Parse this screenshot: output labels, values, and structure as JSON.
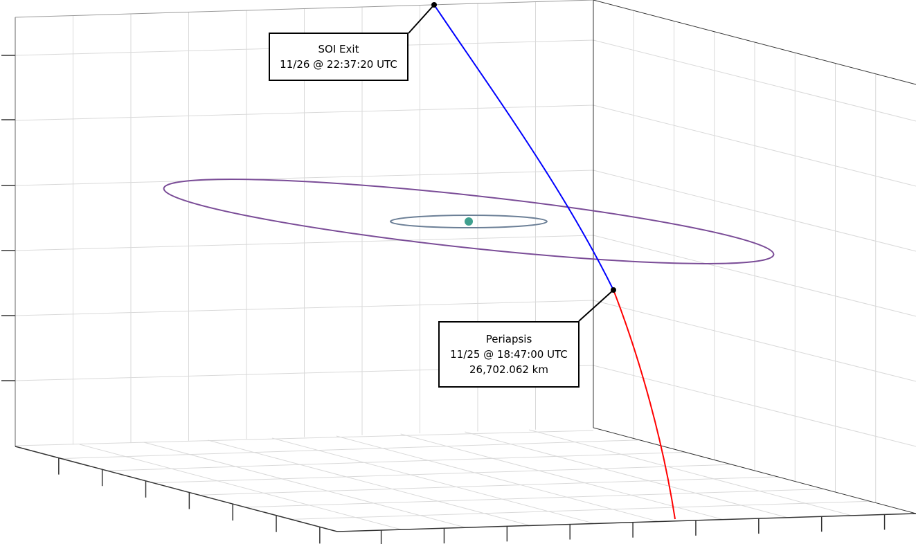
{
  "colors": {
    "grid": "#d9d9d9",
    "axes": "#333333",
    "outbound_trajectory": "#0000ff",
    "inbound_trajectory": "#ff0000",
    "outer_orbit": "#7a4c97",
    "inner_orbit": "#6b7f96",
    "central_body": "#3fa08f",
    "marker": "#000000"
  },
  "annotations": {
    "soi_exit": {
      "title": "SOI Exit",
      "timestamp": "11/26 @ 22:37:20 UTC"
    },
    "periapsis": {
      "title": "Periapsis",
      "timestamp": "11/25 @ 18:47:00 UTC",
      "altitude": "26,702.062 km"
    }
  },
  "markers": [
    "soi-exit-point",
    "periapsis-point",
    "central-body"
  ]
}
